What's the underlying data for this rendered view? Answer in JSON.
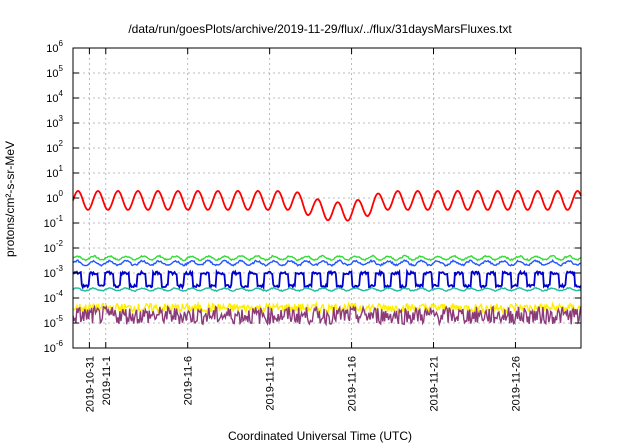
{
  "chart_data": {
    "type": "line",
    "title": "/data/run/goesPlots/archive/2019-11-29/flux/../flux/31daysMarsFluxes.txt",
    "xlabel": "Coordinated Universal Time (UTC)",
    "ylabel": "protons/cm²-s-sr-MeV",
    "x_range": [
      "2019-10-30",
      "2019-11-30"
    ],
    "x_ticks": [
      "2019-10-31",
      "2019-11-1",
      "2019-11-6",
      "2019-11-11",
      "2019-11-16",
      "2019-11-21",
      "2019-11-26"
    ],
    "y_scale": "log",
    "ylim": [
      1e-06,
      1000000.0
    ],
    "y_ticks": [
      "10^-6",
      "10^-5",
      "10^-4",
      "10^-3",
      "10^-2",
      "10^-1",
      "10^0",
      "10^1",
      "10^2",
      "10^3",
      "10^4",
      "10^5",
      "10^6"
    ],
    "grid": true,
    "series": [
      {
        "color": "#ff0000",
        "approx_level": 0.8,
        "range": [
          0.12,
          2.0
        ]
      },
      {
        "color": "#33dd33",
        "approx_level": 0.004,
        "range": [
          0.003,
          0.006
        ]
      },
      {
        "color": "#2255ff",
        "approx_level": 0.0025,
        "range": [
          0.0018,
          0.0035
        ]
      },
      {
        "color": "#0000cc",
        "approx_level": 0.0006,
        "range": [
          0.00025,
          0.0012
        ]
      },
      {
        "color": "#22bb99",
        "approx_level": 0.00022,
        "range": [
          0.00018,
          0.0003
        ]
      },
      {
        "color": "#ffee00",
        "approx_level": 4e-05,
        "range": [
          2.5e-05,
          8e-05
        ]
      },
      {
        "color": "#8b3a7a",
        "approx_level": 2e-05,
        "range": [
          8e-06,
          6e-05
        ]
      }
    ]
  }
}
